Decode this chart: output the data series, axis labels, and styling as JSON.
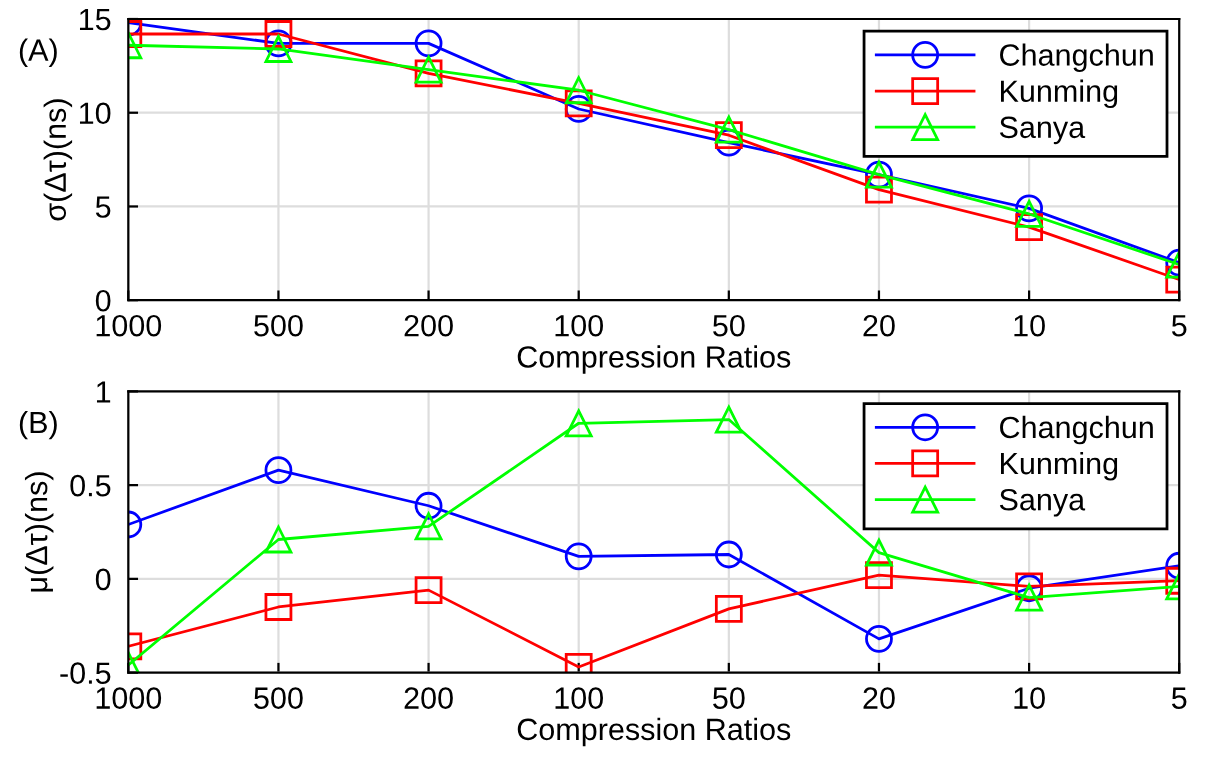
{
  "chart_data": [
    {
      "type": "line",
      "xlabel": "Compression Ratios",
      "ylabel": "σ(Δτ)(ns)",
      "annotations": [
        "(A)"
      ],
      "categories": [
        "1000",
        "500",
        "200",
        "100",
        "50",
        "20",
        "10",
        "5"
      ],
      "ylim": [
        0,
        15
      ],
      "yticks": [
        0,
        5,
        10,
        15
      ],
      "grid": true,
      "legend": "top right",
      "series": [
        {
          "name": "Changchun",
          "color": "#0000ff",
          "marker": "circle",
          "values": [
            14.8,
            13.7,
            13.7,
            10.2,
            8.4,
            6.7,
            4.9,
            2.0
          ]
        },
        {
          "name": "Kunming",
          "color": "#ff0000",
          "marker": "square",
          "values": [
            14.2,
            14.2,
            12.1,
            10.5,
            8.8,
            5.9,
            3.9,
            1.1
          ]
        },
        {
          "name": "Sanya",
          "color": "#00ff00",
          "marker": "triangle",
          "values": [
            13.6,
            13.4,
            12.3,
            11.2,
            9.1,
            6.7,
            4.6,
            1.9
          ]
        }
      ]
    },
    {
      "type": "line",
      "xlabel": "Compression Ratios",
      "ylabel": "μ(Δτ)(ns)",
      "annotations": [
        "(B)"
      ],
      "categories": [
        "1000",
        "500",
        "200",
        "100",
        "50",
        "20",
        "10",
        "5"
      ],
      "ylim": [
        -0.5,
        1
      ],
      "yticks": [
        {
          "value": -0.5,
          "label": "-0.5"
        },
        0,
        0.5,
        1
      ],
      "grid": true,
      "legend": "top right",
      "series": [
        {
          "name": "Changchun",
          "color": "#0000ff",
          "marker": "circle",
          "values": [
            0.29,
            0.58,
            0.39,
            0.12,
            0.13,
            -0.32,
            -0.05,
            0.07
          ]
        },
        {
          "name": "Kunming",
          "color": "#ff0000",
          "marker": "square",
          "values": [
            -0.36,
            -0.15,
            -0.06,
            -0.47,
            -0.16,
            0.02,
            -0.04,
            -0.01
          ]
        },
        {
          "name": "Sanya",
          "color": "#00ff00",
          "marker": "triangle",
          "values": [
            -0.46,
            0.21,
            0.28,
            0.83,
            0.85,
            0.14,
            -0.1,
            -0.04
          ]
        }
      ]
    }
  ]
}
